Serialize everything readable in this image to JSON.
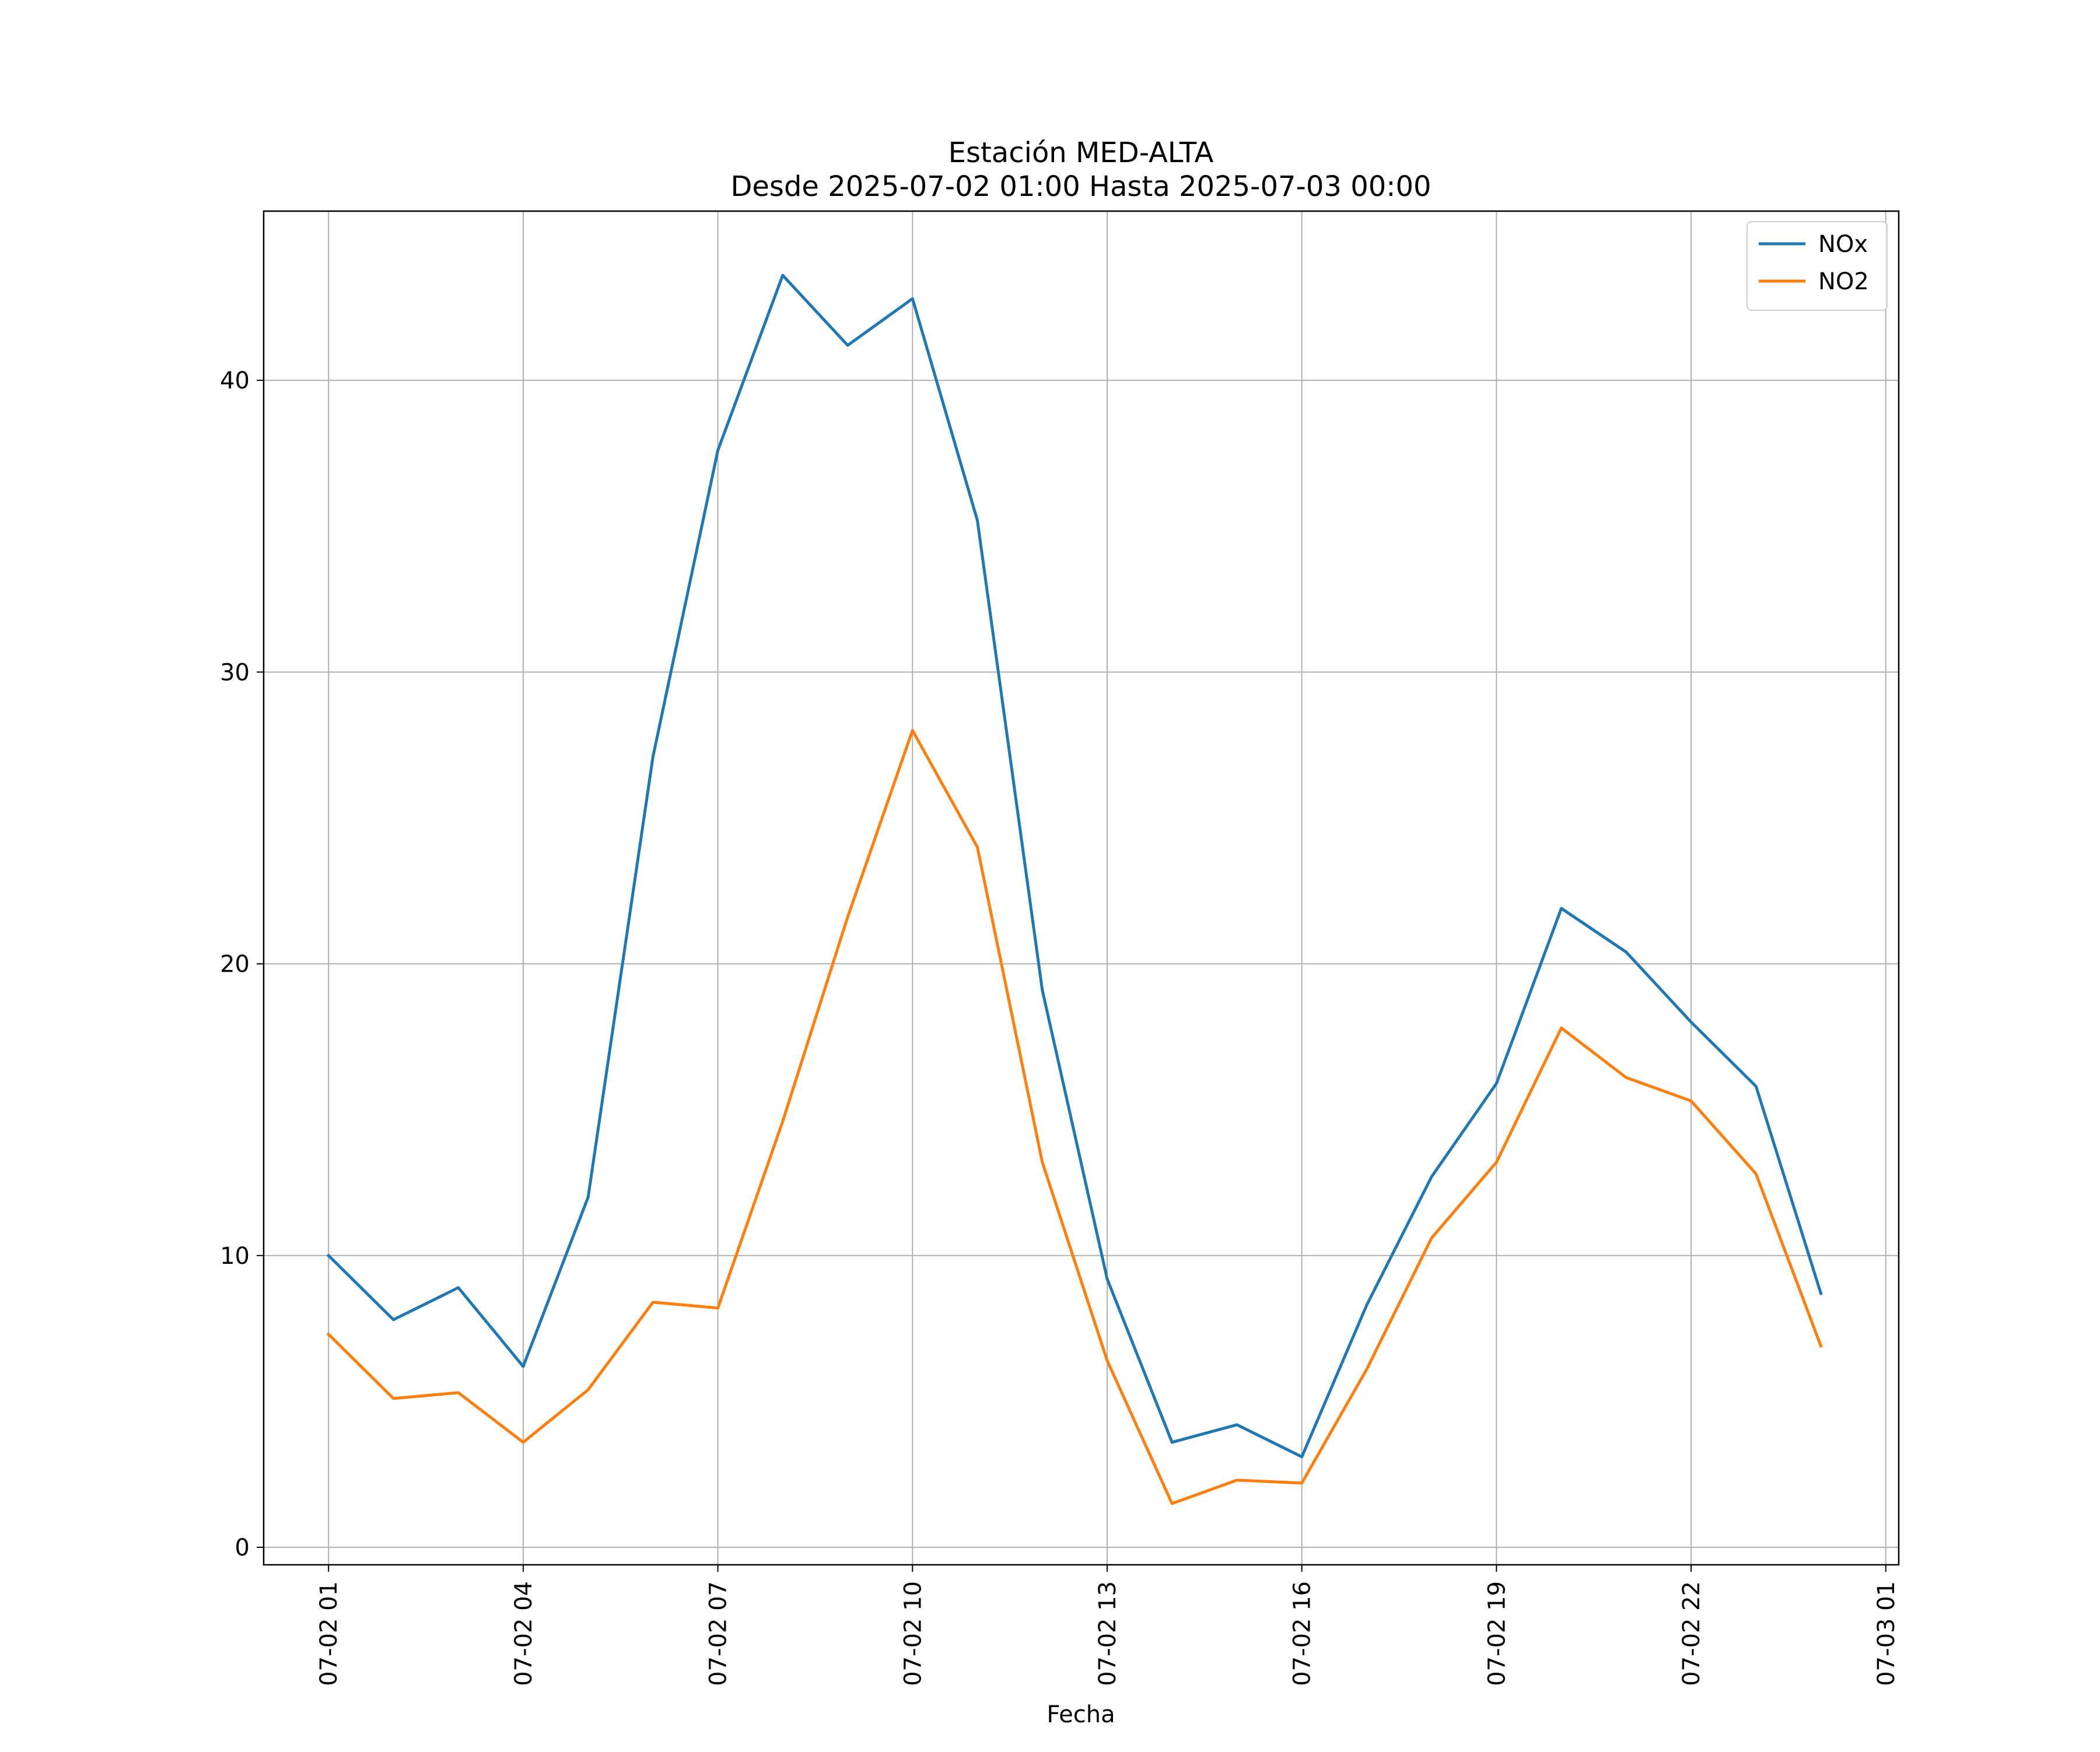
{
  "chart_data": {
    "type": "line",
    "title": "Estación MED-ALTA",
    "subtitle": "Desde 2025-07-02 01:00 Hasta 2025-07-03 00:00",
    "xlabel": "Fecha",
    "ylabel": "",
    "x_axis": {
      "type": "datetime",
      "range": [
        "2025-07-02 00:00",
        "2025-07-03 01:12"
      ],
      "ticks": [
        {
          "value": "2025-07-02 01:00",
          "label": "07-02 01"
        },
        {
          "value": "2025-07-02 04:00",
          "label": "07-02 04"
        },
        {
          "value": "2025-07-02 07:00",
          "label": "07-02 07"
        },
        {
          "value": "2025-07-02 10:00",
          "label": "07-02 10"
        },
        {
          "value": "2025-07-02 13:00",
          "label": "07-02 13"
        },
        {
          "value": "2025-07-02 16:00",
          "label": "07-02 16"
        },
        {
          "value": "2025-07-02 19:00",
          "label": "07-02 19"
        },
        {
          "value": "2025-07-02 22:00",
          "label": "07-02 22"
        },
        {
          "value": "2025-07-03 01:00",
          "label": "07-03 01"
        }
      ]
    },
    "y_axis": {
      "range": [
        -0.6,
        45.8
      ],
      "ticks": [
        0,
        10,
        20,
        30,
        40
      ]
    },
    "grid": true,
    "legend": "top-right",
    "x": [
      "2025-07-02 01:00",
      "2025-07-02 02:00",
      "2025-07-02 03:00",
      "2025-07-02 04:00",
      "2025-07-02 05:00",
      "2025-07-02 06:00",
      "2025-07-02 07:00",
      "2025-07-02 08:00",
      "2025-07-02 09:00",
      "2025-07-02 10:00",
      "2025-07-02 11:00",
      "2025-07-02 12:00",
      "2025-07-02 13:00",
      "2025-07-02 14:00",
      "2025-07-02 15:00",
      "2025-07-02 16:00",
      "2025-07-02 17:00",
      "2025-07-02 18:00",
      "2025-07-02 19:00",
      "2025-07-02 20:00",
      "2025-07-02 21:00",
      "2025-07-02 22:00",
      "2025-07-02 23:00",
      "2025-07-03 00:00"
    ],
    "series": [
      {
        "name": "NOx",
        "color": "#1f77b4",
        "values": [
          10.0,
          7.8,
          8.9,
          6.2,
          12.0,
          27.1,
          37.6,
          43.6,
          41.2,
          42.8,
          35.2,
          19.1,
          9.2,
          3.6,
          4.2,
          3.1,
          8.3,
          12.7,
          15.9,
          21.9,
          20.4,
          18.0,
          15.8,
          8.7
        ]
      },
      {
        "name": "NO2",
        "color": "#ff7f0e",
        "values": [
          7.3,
          5.1,
          5.3,
          3.6,
          5.4,
          8.4,
          8.2,
          14.6,
          21.6,
          28.0,
          24.0,
          13.2,
          6.4,
          1.5,
          2.3,
          2.2,
          6.1,
          10.6,
          13.2,
          17.8,
          16.1,
          15.3,
          12.8,
          6.9
        ]
      }
    ]
  }
}
